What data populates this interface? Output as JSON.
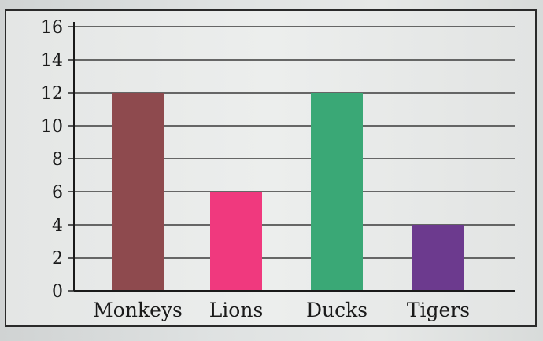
{
  "chart_data": {
    "type": "bar",
    "categories": [
      "Monkeys",
      "Lions",
      "Ducks",
      "Tigers"
    ],
    "values": [
      12,
      6,
      12,
      4
    ],
    "bar_colors": [
      "#8e4a4e",
      "#f0397e",
      "#3aa876",
      "#6c3a8e"
    ],
    "ylim": [
      0,
      16
    ],
    "y_ticks": [
      0,
      2,
      4,
      6,
      8,
      10,
      12,
      14,
      16
    ],
    "grid": true,
    "title": "",
    "xlabel": "",
    "ylabel": ""
  }
}
